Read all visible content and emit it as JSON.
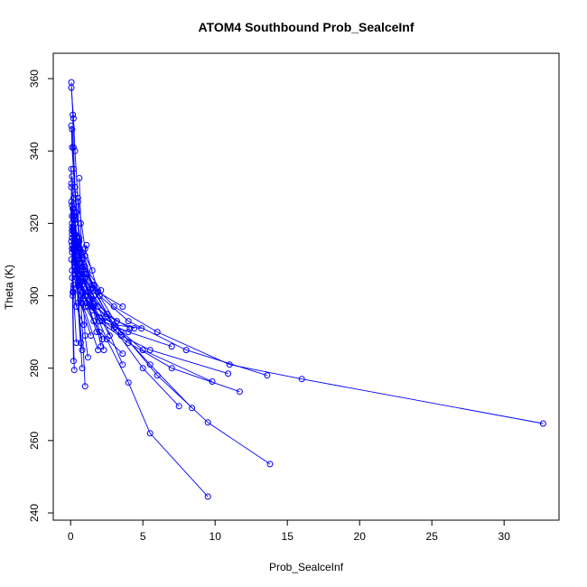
{
  "chart_data": {
    "type": "line",
    "title": "ATOM4 Southbound Prob_SealceInf",
    "xlabel": "Prob_SealceInf",
    "ylabel": "Theta (K)",
    "xlim": [
      0,
      33
    ],
    "ylim": [
      240,
      360
    ],
    "xticks": [
      0,
      5,
      10,
      15,
      20,
      25,
      30
    ],
    "yticks": [
      240,
      260,
      280,
      300,
      320,
      340,
      360
    ],
    "grid": false,
    "legend": "none",
    "color": "#0000ff",
    "series": [
      {
        "x": [
          0.05,
          0.15,
          0.2,
          0.3,
          0.6,
          1.2,
          2.5,
          4.0,
          5.5,
          9.5
        ],
        "y": [
          359,
          350,
          341,
          330,
          315,
          300,
          288,
          276,
          262,
          244.5
        ]
      },
      {
        "x": [
          0.05,
          0.2,
          0.3,
          0.5,
          1.0,
          2.0,
          3.5,
          6.0,
          9.5,
          13.8
        ],
        "y": [
          357.5,
          349,
          340,
          327,
          313,
          300,
          290,
          278,
          265,
          253.5
        ]
      },
      {
        "x": [
          0.05,
          0.1,
          0.3,
          0.6,
          1.5,
          3.0,
          5.0,
          7.5
        ],
        "y": [
          347,
          341,
          328,
          316,
          303,
          291,
          280,
          269.5
        ]
      },
      {
        "x": [
          0.1,
          0.2,
          0.4,
          0.8,
          1.5,
          3.0,
          5.5,
          8.4
        ],
        "y": [
          346,
          335,
          323,
          312,
          302,
          292,
          281,
          269
        ]
      },
      {
        "x": [
          0.1,
          0.2,
          0.3,
          0.5,
          1.0,
          2.0,
          4.0,
          8.0,
          13.6
        ],
        "y": [
          333,
          327,
          321,
          314,
          306,
          300,
          293,
          285,
          278
        ]
      },
      {
        "x": [
          0.05,
          0.2,
          0.4,
          0.8,
          1.6,
          3.0,
          6.0,
          11.0,
          16.0,
          32.7
        ],
        "y": [
          330,
          322,
          315,
          309,
          303,
          297,
          290,
          281,
          277,
          264.7
        ]
      },
      {
        "x": [
          0.1,
          0.3,
          0.6,
          1.2,
          2.4,
          5.0,
          9.8
        ],
        "y": [
          325,
          317,
          309,
          301,
          294,
          285,
          276.3
        ]
      },
      {
        "x": [
          0.1,
          0.3,
          0.6,
          1.0,
          2.0,
          4.0,
          7.0,
          11.7
        ],
        "y": [
          320,
          313,
          306,
          300,
          293,
          287,
          280,
          273.5
        ]
      },
      {
        "x": [
          0.1,
          0.2,
          0.5,
          1.0,
          2.0,
          3.5,
          5.5,
          10.9
        ],
        "y": [
          318,
          313,
          306,
          300,
          294,
          289,
          285,
          278.5
        ]
      },
      {
        "x": [
          0.05,
          0.3,
          0.5,
          1.0,
          2.0,
          3.6
        ],
        "y": [
          315,
          309,
          303,
          297,
          290,
          284
        ]
      },
      {
        "x": [
          0.1,
          0.3,
          0.6,
          1.1,
          2.2,
          4.0,
          7.0
        ],
        "y": [
          317,
          310,
          304,
          298,
          293,
          290,
          286
        ]
      },
      {
        "x": [
          0.1,
          0.4,
          0.8,
          1.5,
          3.0,
          4.9
        ],
        "y": [
          313,
          307,
          301,
          296,
          292,
          291
        ]
      },
      {
        "x": [
          0.1,
          0.4,
          0.8,
          1.6,
          3.2,
          4.4
        ],
        "y": [
          318,
          310,
          303,
          297,
          293,
          291
        ]
      },
      {
        "x": [
          0.1,
          0.3,
          0.6,
          1.2,
          2.5,
          4.1
        ],
        "y": [
          322,
          314,
          307,
          301,
          295,
          291
        ]
      },
      {
        "x": [
          0.15,
          0.4,
          0.8,
          1.6,
          3.1
        ],
        "y": [
          324,
          316,
          308,
          300,
          291.5
        ]
      },
      {
        "x": [
          0.1,
          0.3,
          0.7,
          1.4,
          2.1
        ],
        "y": [
          319,
          312,
          306,
          300,
          286
        ]
      },
      {
        "x": [
          0.2,
          0.4,
          0.8,
          1.5,
          2.3
        ],
        "y": [
          323,
          314,
          306,
          299,
          285
        ]
      },
      {
        "x": [
          0.2,
          0.5,
          1.0,
          1.9,
          3.6
        ],
        "y": [
          321,
          313,
          305,
          297,
          281
        ]
      },
      {
        "x": [
          0.1,
          0.3,
          0.8,
          1.9
        ],
        "y": [
          316,
          308,
          298,
          285
        ]
      },
      {
        "x": [
          0.1,
          0.3,
          0.7,
          1.4
        ],
        "y": [
          314,
          306,
          298,
          289
        ]
      },
      {
        "x": [
          0.2,
          0.4,
          0.8,
          1.5,
          2.7
        ],
        "y": [
          318,
          311,
          305,
          298,
          289
        ]
      },
      {
        "x": [
          0.3,
          0.6,
          1.1,
          1.9,
          3.6
        ],
        "y": [
          320,
          313,
          306,
          301,
          297
        ]
      },
      {
        "x": [
          0.6,
          0.7,
          0.8,
          1.0,
          1.2
        ],
        "y": [
          332.5,
          320,
          305,
          289,
          283
        ]
      },
      {
        "x": [
          0.5,
          0.7,
          1.0
        ],
        "y": [
          326,
          300,
          275
        ]
      },
      {
        "x": [
          0.3,
          0.5,
          0.8
        ],
        "y": [
          317,
          298,
          280
        ]
      },
      {
        "x": [
          0.05,
          0.1,
          0.2
        ],
        "y": [
          335,
          307,
          282
        ]
      },
      {
        "x": [
          0.1,
          0.15,
          0.25
        ],
        "y": [
          322,
          300,
          279.5
        ]
      },
      {
        "x": [
          0.2,
          0.4,
          0.8
        ],
        "y": [
          324,
          305,
          285
        ]
      },
      {
        "x": [
          0.3,
          0.5,
          0.7
        ],
        "y": [
          322,
          304,
          287
        ]
      },
      {
        "x": [
          0.1,
          0.4,
          0.9,
          1.5
        ],
        "y": [
          316,
          310,
          304,
          297
        ]
      },
      {
        "x": [
          0.2,
          0.5,
          1.0,
          2.1
        ],
        "y": [
          319,
          312,
          308,
          301.5
        ]
      },
      {
        "x": [
          0.1,
          0.3,
          0.6,
          1.1
        ],
        "y": [
          312,
          307,
          303,
          314
        ]
      },
      {
        "x": [
          0.05,
          0.1,
          0.15
        ],
        "y": [
          331,
          318,
          301
        ]
      },
      {
        "x": [
          0.05,
          0.1,
          0.2
        ],
        "y": [
          326,
          313,
          302
        ]
      },
      {
        "x": [
          0.1,
          0.3,
          0.6,
          1.4
        ],
        "y": [
          313,
          309,
          306,
          302
        ]
      },
      {
        "x": [
          0.2,
          0.5,
          1.0,
          1.5
        ],
        "y": [
          318,
          315,
          311,
          307
        ]
      },
      {
        "x": [
          0.3,
          0.6,
          1.0,
          1.6,
          2.2
        ],
        "y": [
          313,
          306,
          300,
          293,
          288
        ]
      },
      {
        "x": [
          0.4,
          0.7,
          1.2,
          1.8
        ],
        "y": [
          311,
          304,
          297,
          290
        ]
      },
      {
        "x": [
          0.05,
          0.2,
          0.4,
          0.9
        ],
        "y": [
          310,
          303,
          297,
          292
        ]
      },
      {
        "x": [
          0.1,
          0.2,
          0.4
        ],
        "y": [
          305,
          301,
          287
        ]
      }
    ]
  }
}
